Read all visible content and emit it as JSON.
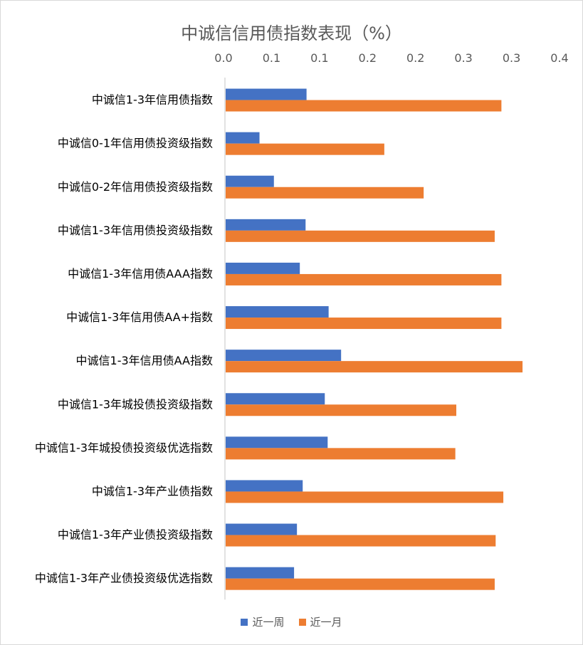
{
  "chart_data": {
    "type": "bar",
    "orientation": "horizontal",
    "title": "中诚信信用债指数表现（%）",
    "xlabel": "",
    "ylabel": "",
    "xlim": [
      0,
      0.35
    ],
    "x_tick_values": [
      0,
      0.05,
      0.1,
      0.15,
      0.2,
      0.25,
      0.3,
      0.35
    ],
    "x_tick_labels": [
      "0.0",
      "0.1",
      "0.1",
      "0.2",
      "0.2",
      "0.3",
      "0.3",
      "0.4"
    ],
    "x_axis_position": "top",
    "grid": false,
    "legend_position": "bottom",
    "categories": [
      "中诚信1-3年信用债指数",
      "中诚信0-1年信用债投资级指数",
      "中诚信0-2年信用债投资级指数",
      "中诚信1-3年信用债投资级指数",
      "中诚信1-3年信用债AAA指数",
      "中诚信1-3年信用债AA+指数",
      "中诚信1-3年信用债AA指数",
      "中诚信1-3年城投债投资级指数",
      "中诚信1-3年城投债投资级优选指数",
      "中诚信1-3年产业债指数",
      "中诚信1-3年产业债投资级指数",
      "中诚信1-3年产业债投资级优选指数"
    ],
    "series": [
      {
        "name": "近一周",
        "color": "#4472c4",
        "values": [
          0.085,
          0.036,
          0.051,
          0.084,
          0.078,
          0.108,
          0.121,
          0.104,
          0.107,
          0.081,
          0.075,
          0.072
        ]
      },
      {
        "name": "近一月",
        "color": "#ed7d31",
        "values": [
          0.288,
          0.166,
          0.207,
          0.281,
          0.288,
          0.288,
          0.31,
          0.241,
          0.24,
          0.29,
          0.282,
          0.281
        ]
      }
    ]
  }
}
